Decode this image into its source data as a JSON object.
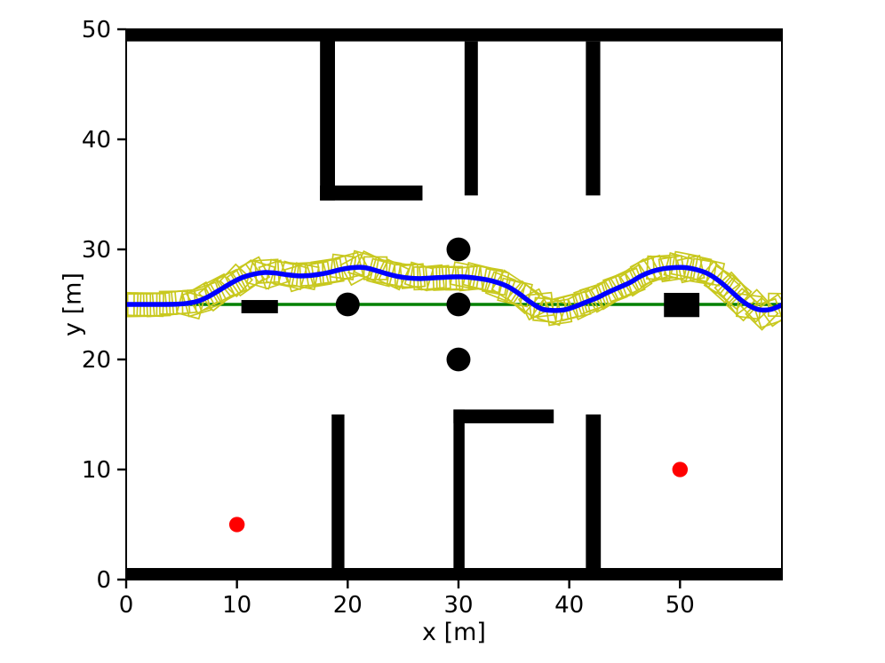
{
  "chart_data": {
    "type": "line",
    "title": "",
    "xlabel": "x [m]",
    "ylabel": "y [m]",
    "xlim": [
      0,
      59.2
    ],
    "ylim": [
      0,
      50
    ],
    "xticks": [
      0,
      10,
      20,
      30,
      40,
      50
    ],
    "yticks": [
      0,
      10,
      20,
      30,
      40,
      50
    ],
    "grid": false,
    "legend": "none",
    "colors": {
      "reference_path": "#008000",
      "trajectory": "#0000ff",
      "footprint": "#c8c81e",
      "obstacle": "#000000",
      "waypoint_marker": "#ff0000",
      "spine": "#000000",
      "background": "#ffffff"
    },
    "series": [
      {
        "name": "reference-path",
        "color": "#008000",
        "stroke_width": 3.4,
        "points": [
          [
            0,
            25
          ],
          [
            59.2,
            25
          ]
        ]
      },
      {
        "name": "executed-trajectory",
        "color": "#0000ff",
        "stroke_width": 5.5,
        "points": [
          [
            0,
            25
          ],
          [
            3,
            25
          ],
          [
            4.5,
            25.02
          ],
          [
            5.5,
            25.1
          ],
          [
            6.5,
            25.3
          ],
          [
            7.5,
            25.75
          ],
          [
            8.5,
            26.35
          ],
          [
            9.5,
            26.95
          ],
          [
            10.5,
            27.45
          ],
          [
            11.5,
            27.75
          ],
          [
            12.5,
            27.9
          ],
          [
            13.5,
            27.85
          ],
          [
            14.5,
            27.7
          ],
          [
            15.5,
            27.6
          ],
          [
            16.5,
            27.62
          ],
          [
            17.5,
            27.75
          ],
          [
            18.5,
            27.95
          ],
          [
            19.5,
            28.2
          ],
          [
            20.5,
            28.35
          ],
          [
            21.5,
            28.35
          ],
          [
            22.5,
            28.1
          ],
          [
            23.5,
            27.8
          ],
          [
            24.5,
            27.55
          ],
          [
            25.5,
            27.4
          ],
          [
            26.5,
            27.35
          ],
          [
            27.5,
            27.4
          ],
          [
            28.5,
            27.45
          ],
          [
            29.5,
            27.5
          ],
          [
            30.5,
            27.5
          ],
          [
            31.5,
            27.4
          ],
          [
            32.5,
            27.25
          ],
          [
            33.5,
            27.0
          ],
          [
            34.5,
            26.6
          ],
          [
            35.5,
            25.95
          ],
          [
            36.5,
            25.2
          ],
          [
            37.5,
            24.6
          ],
          [
            38.5,
            24.45
          ],
          [
            39.5,
            24.5
          ],
          [
            40.5,
            24.8
          ],
          [
            41.5,
            25.2
          ],
          [
            42.5,
            25.6
          ],
          [
            43.5,
            26.1
          ],
          [
            44.5,
            26.55
          ],
          [
            45.5,
            27.0
          ],
          [
            46.5,
            27.6
          ],
          [
            47.5,
            28.0
          ],
          [
            48.5,
            28.25
          ],
          [
            49.5,
            28.35
          ],
          [
            50.5,
            28.35
          ],
          [
            51.5,
            28.15
          ],
          [
            52.5,
            27.8
          ],
          [
            53.5,
            27.15
          ],
          [
            54.5,
            26.3
          ],
          [
            55.5,
            25.4
          ],
          [
            56.5,
            24.75
          ],
          [
            57.3,
            24.5
          ],
          [
            58.2,
            24.55
          ],
          [
            59.2,
            24.95
          ]
        ]
      }
    ],
    "footprints": {
      "name": "robot-footprints",
      "color": "#c8c81e",
      "side": 2.05,
      "spacing": 0.58,
      "stroke_width": 1.7
    },
    "walls": [
      {
        "x": 0,
        "y": 48.9,
        "w": 59.2,
        "h": 1.1
      },
      {
        "x": 0,
        "y": 0,
        "w": 59.2,
        "h": 1.05
      },
      {
        "x": 17.5,
        "y": 34.45,
        "w": 1.35,
        "h": 14.5
      },
      {
        "x": 17.5,
        "y": 34.45,
        "w": 9.25,
        "h": 1.35
      },
      {
        "x": 30.55,
        "y": 34.9,
        "w": 1.2,
        "h": 14.0
      },
      {
        "x": 41.5,
        "y": 34.9,
        "w": 1.3,
        "h": 14.0
      },
      {
        "x": 18.55,
        "y": 1.0,
        "w": 1.15,
        "h": 14.0
      },
      {
        "x": 29.55,
        "y": 1.0,
        "w": 1.0,
        "h": 14.45
      },
      {
        "x": 29.55,
        "y": 14.2,
        "w": 9.05,
        "h": 1.25
      },
      {
        "x": 41.5,
        "y": 1.0,
        "w": 1.35,
        "h": 14.0
      }
    ],
    "obstacle_rects": [
      {
        "cx": 12.05,
        "cy": 24.8,
        "w": 3.3,
        "h": 1.2
      },
      {
        "cx": 50.15,
        "cy": 24.95,
        "w": 3.2,
        "h": 2.2
      }
    ],
    "obstacle_circles": [
      {
        "x": 20,
        "y": 25,
        "r": 1.08
      },
      {
        "x": 30,
        "y": 20,
        "r": 1.08
      },
      {
        "x": 30,
        "y": 25,
        "r": 1.08
      },
      {
        "x": 30,
        "y": 30,
        "r": 1.08
      }
    ],
    "waypoint_dots": [
      {
        "x": 10,
        "y": 5,
        "r": 0.7
      },
      {
        "x": 50,
        "y": 10,
        "r": 0.7
      }
    ]
  }
}
